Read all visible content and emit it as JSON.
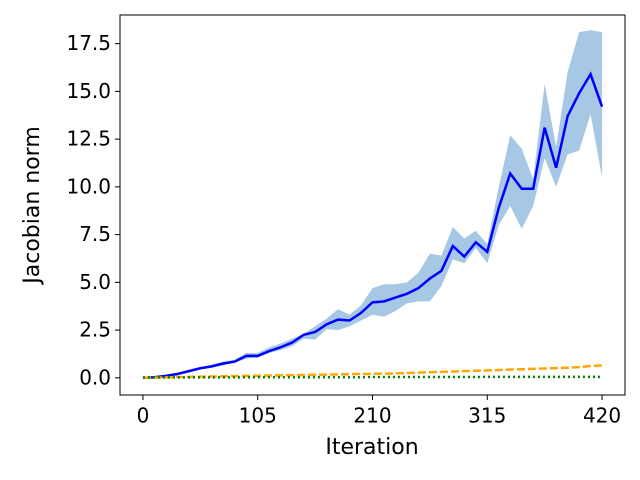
{
  "chart_data": {
    "type": "line",
    "x_label": "Iteration",
    "y_label": "Jacobian norm",
    "x": [
      0,
      10.5,
      21,
      31.5,
      42,
      52.5,
      63,
      73.5,
      84,
      94.5,
      105,
      115.5,
      126,
      136.5,
      147,
      157.5,
      168,
      178.5,
      189,
      199.5,
      210,
      220.5,
      231,
      241.5,
      252,
      262.5,
      273,
      283.5,
      294,
      304.5,
      315,
      325.5,
      336,
      346.5,
      357,
      367.5,
      378,
      388.5,
      399,
      409.5,
      420
    ],
    "xlim": [
      -21,
      441
    ],
    "xticks": [
      0,
      105,
      210,
      315,
      420
    ],
    "ylim": [
      -0.9,
      19.0
    ],
    "yticks": [
      {
        "value": 0,
        "label": "0.0"
      },
      {
        "value": 2.5,
        "label": "2.5"
      },
      {
        "value": 5,
        "label": "5.0"
      },
      {
        "value": 7.5,
        "label": "7.5"
      },
      {
        "value": 10,
        "label": "10.0"
      },
      {
        "value": 12.5,
        "label": "12.5"
      },
      {
        "value": 15,
        "label": "15.0"
      },
      {
        "value": 17.5,
        "label": "17.5"
      }
    ],
    "series": [
      {
        "color": "#0000ff",
        "band_color": "#a6c8e4",
        "dash": "solid",
        "values": [
          0,
          0.03,
          0.1,
          0.2,
          0.35,
          0.5,
          0.6,
          0.75,
          0.85,
          1.15,
          1.15,
          1.4,
          1.6,
          1.85,
          2.25,
          2.4,
          2.8,
          3.05,
          3.0,
          3.4,
          3.95,
          4.0,
          4.2,
          4.4,
          4.7,
          5.2,
          5.6,
          6.9,
          6.35,
          7.1,
          6.6,
          8.9,
          10.7,
          9.9,
          9.9,
          13.1,
          11.0,
          13.7,
          14.9,
          15.9,
          14.2
        ],
        "lower": [
          0,
          0,
          0.05,
          0.15,
          0.3,
          0.45,
          0.55,
          0.65,
          0.8,
          1.0,
          1.05,
          1.3,
          1.45,
          1.65,
          2.05,
          2.0,
          2.55,
          2.5,
          2.7,
          3.0,
          3.3,
          3.2,
          3.5,
          3.9,
          4.0,
          4.0,
          4.8,
          6.2,
          6.0,
          6.8,
          6.0,
          8.0,
          9.0,
          7.8,
          9.0,
          11.5,
          10.0,
          11.7,
          11.9,
          13.8,
          10.5
        ],
        "upper": [
          0,
          0.05,
          0.15,
          0.25,
          0.4,
          0.55,
          0.7,
          0.85,
          0.95,
          1.3,
          1.3,
          1.6,
          1.8,
          2.05,
          2.3,
          2.7,
          3.1,
          3.6,
          3.3,
          3.8,
          4.7,
          4.9,
          4.9,
          5.0,
          5.5,
          6.5,
          6.4,
          7.9,
          7.3,
          7.7,
          7.0,
          10.0,
          12.7,
          12.0,
          10.4,
          15.4,
          12.1,
          16.0,
          18.1,
          18.2,
          18.1
        ]
      },
      {
        "color": "#ffa500",
        "dash": "dashed",
        "values": [
          0,
          0.01,
          0.02,
          0.04,
          0.05,
          0.06,
          0.07,
          0.08,
          0.09,
          0.1,
          0.11,
          0.12,
          0.13,
          0.14,
          0.15,
          0.16,
          0.17,
          0.18,
          0.19,
          0.2,
          0.21,
          0.22,
          0.23,
          0.25,
          0.27,
          0.29,
          0.31,
          0.33,
          0.35,
          0.37,
          0.39,
          0.41,
          0.43,
          0.45,
          0.47,
          0.49,
          0.51,
          0.53,
          0.56,
          0.62,
          0.65
        ]
      },
      {
        "color": "#008000",
        "dash": "dotted",
        "values": [
          0.02,
          0.02,
          0.02,
          0.02,
          0.02,
          0.02,
          0.02,
          0.02,
          0.02,
          0.02,
          0.03,
          0.03,
          0.03,
          0.03,
          0.03,
          0.03,
          0.03,
          0.03,
          0.03,
          0.03,
          0.04,
          0.04,
          0.04,
          0.04,
          0.04,
          0.04,
          0.04,
          0.04,
          0.04,
          0.04,
          0.05,
          0.05,
          0.05,
          0.05,
          0.05,
          0.05,
          0.05,
          0.05,
          0.05,
          0.05,
          0.05
        ]
      }
    ]
  }
}
